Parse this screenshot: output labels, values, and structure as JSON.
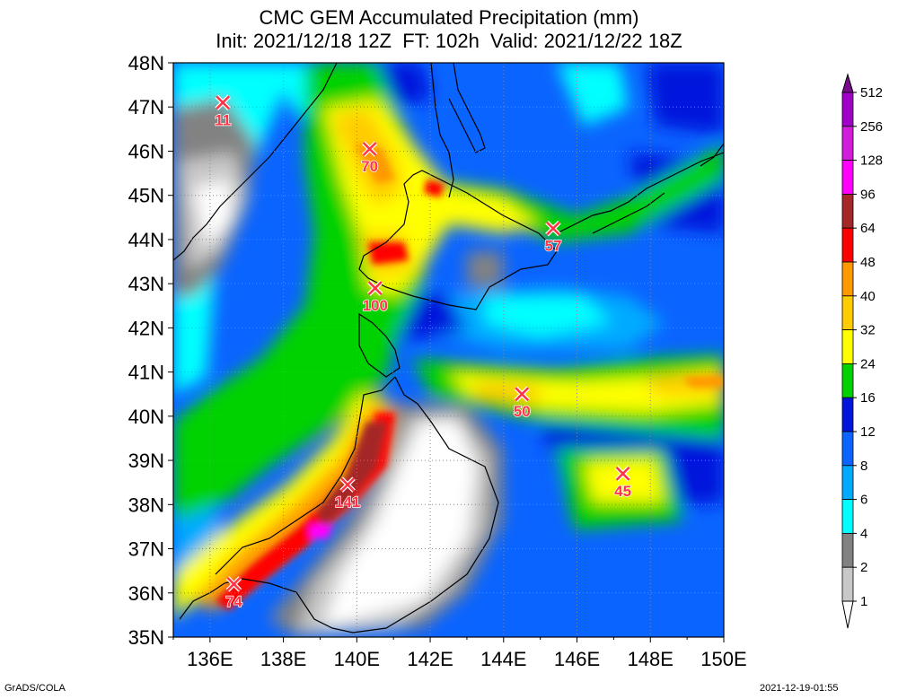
{
  "header": {
    "title": "CMC GEM Accumulated Precipitation (mm)",
    "subtitle": "Init: 2021/12/18 12Z  FT: 102h  Valid: 2021/12/22 18Z"
  },
  "axes": {
    "lat_labels": [
      "48N",
      "47N",
      "46N",
      "45N",
      "44N",
      "43N",
      "42N",
      "41N",
      "40N",
      "39N",
      "38N",
      "37N",
      "36N",
      "35N"
    ],
    "lon_labels": [
      "136E",
      "138E",
      "140E",
      "142E",
      "144E",
      "146E",
      "148E",
      "150E"
    ]
  },
  "colorbar": {
    "levels": [
      "512",
      "256",
      "128",
      "96",
      "64",
      "48",
      "40",
      "32",
      "24",
      "16",
      "12",
      "8",
      "6",
      "4",
      "2",
      "1"
    ],
    "colors": [
      "#7a0a8c",
      "#a000c8",
      "#d21edc",
      "#ff00ff",
      "#a52828",
      "#ff0000",
      "#ff9900",
      "#ffcc00",
      "#ffff00",
      "#00d200",
      "#0014dc",
      "#0a64ff",
      "#00aaff",
      "#00ffff",
      "#828282",
      "#c8c8c8",
      "#ffffff"
    ]
  },
  "markers": [
    {
      "value": "11",
      "lon": 136.35,
      "lat": 47.1
    },
    {
      "value": "70",
      "lon": 140.35,
      "lat": 46.05
    },
    {
      "value": "57",
      "lon": 145.35,
      "lat": 44.25
    },
    {
      "value": "100",
      "lon": 140.5,
      "lat": 42.9
    },
    {
      "value": "50",
      "lon": 144.5,
      "lat": 40.5
    },
    {
      "value": "45",
      "lon": 147.25,
      "lat": 38.7
    },
    {
      "value": "141",
      "lon": 139.75,
      "lat": 38.45
    },
    {
      "value": "74",
      "lon": 136.65,
      "lat": 36.2
    }
  ],
  "footer": {
    "left": "GrADS/COLA",
    "right": "2021-12-19-01:55"
  }
}
